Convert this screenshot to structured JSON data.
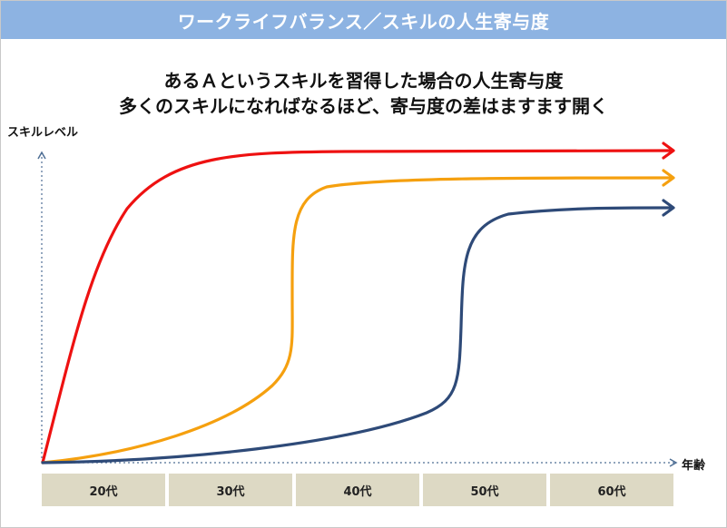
{
  "header": {
    "title": "ワークライフバランス／スキルの人生寄与度"
  },
  "subtitle": {
    "line1": "あるＡというスキルを習得した場合の人生寄与度",
    "line2": "多くのスキルになればなるほど、寄与度の差はますます開く"
  },
  "axes": {
    "y_label": "スキルレベル",
    "x_label": "年齢"
  },
  "age_groups": [
    "20代",
    "30代",
    "40代",
    "50代",
    "60代"
  ],
  "colors": {
    "header_bg": "#8db3e2",
    "curve_red": "#ee1111",
    "curve_orange": "#f5a00f",
    "curve_navy": "#2e4a78",
    "axis": "#4f6f95",
    "age_box_bg": "#ddd9c4"
  }
}
